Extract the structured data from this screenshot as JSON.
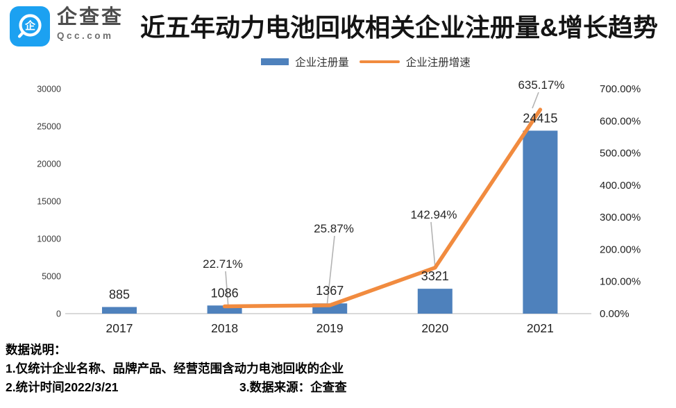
{
  "header": {
    "logo": {
      "brand_cn": "企查查",
      "brand_en": "Qcc.com",
      "logo_glyph": "企",
      "brand_color": "#1CA1F1"
    },
    "title": "近五年动力电池回收相关企业注册量&增长趋势"
  },
  "legend": [
    {
      "label": "企业注册量",
      "type": "bar",
      "color": "#4E81BC"
    },
    {
      "label": "企业注册增速",
      "type": "line",
      "color": "#F18B3F"
    }
  ],
  "chart_data": {
    "type": "bar+line combo",
    "title": "近五年动力电池回收相关企业注册量&增长趋势",
    "categories": [
      "2017",
      "2018",
      "2019",
      "2020",
      "2021"
    ],
    "series": [
      {
        "name": "企业注册量",
        "type": "bar",
        "axis": "left",
        "color": "#4E81BC",
        "values": [
          885,
          1086,
          1367,
          3321,
          24415
        ],
        "labels": [
          "885",
          "1086",
          "1367",
          "3321",
          "24415"
        ]
      },
      {
        "name": "企业注册增速",
        "type": "line",
        "axis": "right",
        "color": "#F18B3F",
        "values": [
          null,
          22.71,
          25.87,
          142.94,
          635.17
        ],
        "labels": [
          null,
          "22.71%",
          "25.87%",
          "142.94%",
          "635.17%"
        ]
      }
    ],
    "left_axis": {
      "min": 0,
      "max": 30000,
      "step": 5000,
      "ticks": [
        "0",
        "5000",
        "10000",
        "15000",
        "20000",
        "25000",
        "30000"
      ]
    },
    "right_axis": {
      "min": 0,
      "max": 700,
      "step": 100,
      "ticks": [
        "0.00%",
        "100.00%",
        "200.00%",
        "300.00%",
        "400.00%",
        "500.00%",
        "600.00%",
        "700.00%"
      ]
    },
    "grid": false,
    "legend_position": "top"
  },
  "footer": {
    "heading": "数据说明：",
    "note1": "1.仅统计企业名称、品牌产品、经营范围含动力电池回收的企业",
    "note2": "2.统计时间2022/3/21",
    "note3": "3.数据来源：企查查"
  }
}
